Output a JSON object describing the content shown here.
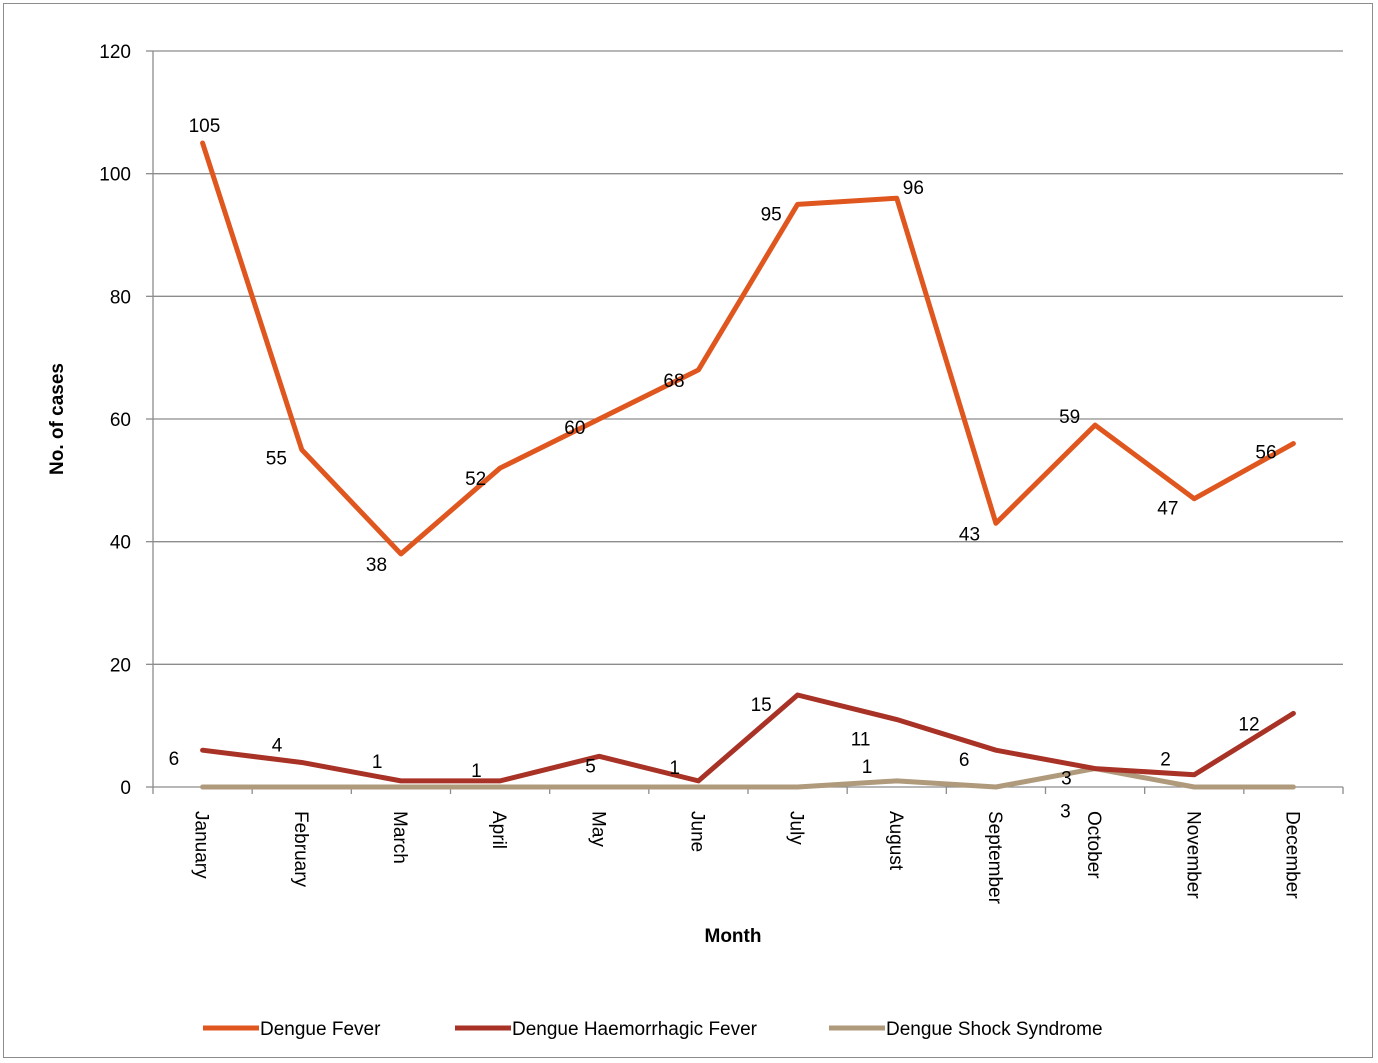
{
  "chart_data": {
    "type": "line",
    "title": "",
    "xlabel": "Month",
    "ylabel": "No. of cases",
    "ylim": [
      0,
      120
    ],
    "yticks": [
      0,
      20,
      40,
      60,
      80,
      100,
      120
    ],
    "grid": true,
    "legend_position": "bottom",
    "categories": [
      "January",
      "February",
      "March",
      "April",
      "May",
      "June",
      "July",
      "August",
      "September",
      "October",
      "November",
      "December"
    ],
    "series": [
      {
        "name": "Dengue Fever",
        "color": "#e0561f",
        "values": [
          105,
          55,
          38,
          52,
          60,
          68,
          95,
          96,
          43,
          59,
          47,
          56
        ]
      },
      {
        "name": "Dengue Haemorrhagic Fever",
        "color": "#a93226",
        "values": [
          6,
          4,
          1,
          1,
          5,
          1,
          15,
          11,
          6,
          3,
          2,
          12
        ]
      },
      {
        "name": "Dengue Shock Syndrome",
        "color": "#b09a7c",
        "values": [
          0,
          0,
          0,
          0,
          0,
          0,
          0,
          1,
          0,
          3,
          0,
          0
        ]
      }
    ],
    "data_labels": [
      {
        "series": 0,
        "index": 0,
        "text": "105"
      },
      {
        "series": 0,
        "index": 1,
        "text": "55"
      },
      {
        "series": 0,
        "index": 2,
        "text": "38"
      },
      {
        "series": 0,
        "index": 3,
        "text": "52"
      },
      {
        "series": 0,
        "index": 4,
        "text": "60"
      },
      {
        "series": 0,
        "index": 5,
        "text": "68"
      },
      {
        "series": 0,
        "index": 6,
        "text": "95"
      },
      {
        "series": 0,
        "index": 7,
        "text": "96"
      },
      {
        "series": 0,
        "index": 8,
        "text": "43"
      },
      {
        "series": 0,
        "index": 9,
        "text": "59"
      },
      {
        "series": 0,
        "index": 10,
        "text": "47"
      },
      {
        "series": 0,
        "index": 11,
        "text": "56"
      },
      {
        "series": 1,
        "index": 0,
        "text": "6"
      },
      {
        "series": 1,
        "index": 1,
        "text": "4"
      },
      {
        "series": 1,
        "index": 2,
        "text": "1"
      },
      {
        "series": 1,
        "index": 3,
        "text": "1"
      },
      {
        "series": 1,
        "index": 4,
        "text": "5"
      },
      {
        "series": 1,
        "index": 5,
        "text": "1"
      },
      {
        "series": 1,
        "index": 6,
        "text": "15"
      },
      {
        "series": 1,
        "index": 7,
        "text": "11"
      },
      {
        "series": 1,
        "index": 8,
        "text": "6"
      },
      {
        "series": 1,
        "index": 9,
        "text": "3"
      },
      {
        "series": 1,
        "index": 10,
        "text": "2"
      },
      {
        "series": 1,
        "index": 11,
        "text": "12"
      },
      {
        "series": 2,
        "index": 7,
        "text": "1"
      },
      {
        "series": 2,
        "index": 9,
        "text": "3"
      }
    ]
  }
}
